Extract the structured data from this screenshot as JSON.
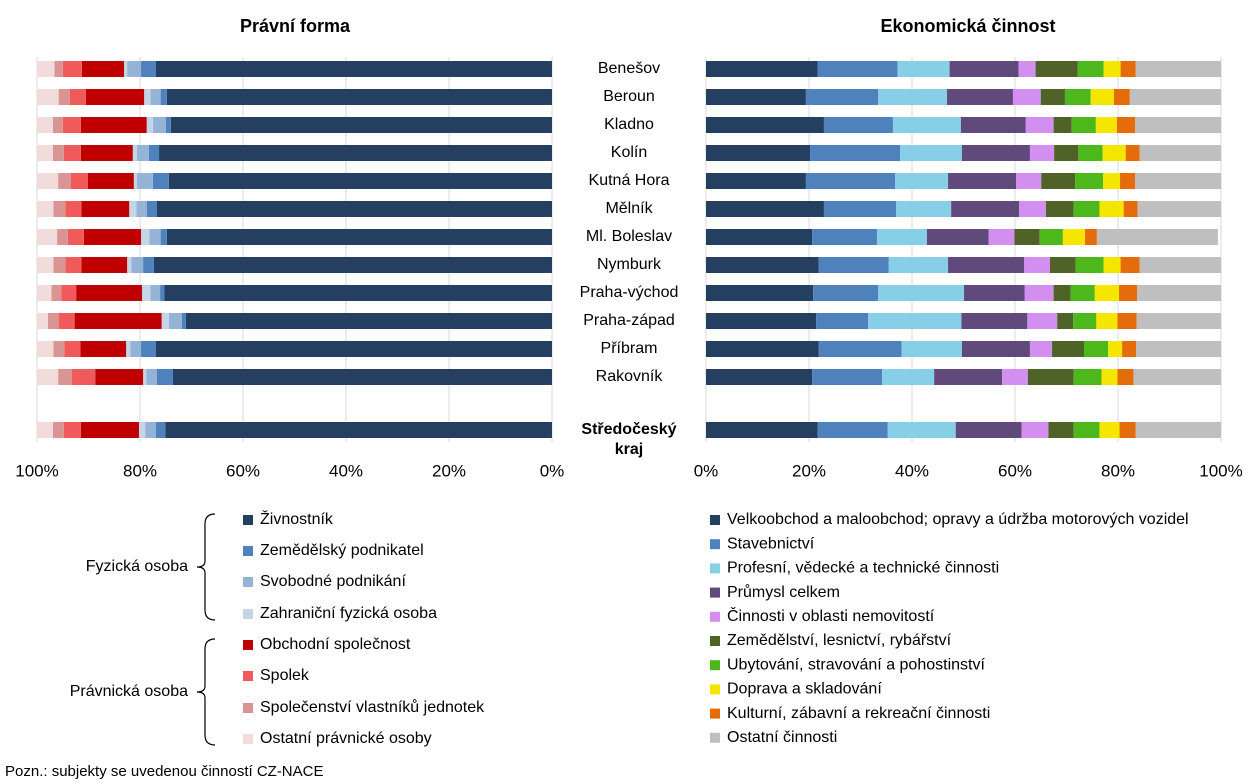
{
  "note": "Pozn.: subjekty se uvedenou činností CZ-NACE",
  "chart_data": [
    {
      "type": "stacked-bar-horizontal",
      "title": "Právní forma",
      "xlim": [
        100,
        0
      ],
      "xticks": [
        {
          "value": 100,
          "label": "100%"
        },
        {
          "value": 80,
          "label": "80%"
        },
        {
          "value": 60,
          "label": "60%"
        },
        {
          "value": 40,
          "label": "40%"
        },
        {
          "value": 20,
          "label": "20%"
        },
        {
          "value": 0,
          "label": "0%"
        }
      ],
      "grid": true,
      "legend_groups": [
        {
          "label": "Fyzická osoba",
          "series": [
            0,
            1,
            2,
            3
          ]
        },
        {
          "label": "Právnická osoba",
          "series": [
            4,
            5,
            6,
            7
          ]
        }
      ],
      "series": [
        {
          "name": "Živnostník",
          "color": "#243f60",
          "values": [
            76.9,
            74.8,
            74.0,
            76.3,
            74.4,
            76.7,
            74.8,
            77.3,
            75.3,
            71.1,
            76.9,
            73.6,
            null,
            75.1
          ]
        },
        {
          "name": "Zemědělský podnikatel",
          "color": "#4f81bd",
          "values": [
            2.9,
            1.2,
            1.0,
            2.0,
            3.1,
            2.0,
            1.2,
            2.1,
            0.8,
            0.8,
            2.9,
            3.1,
            null,
            1.8
          ]
        },
        {
          "name": "Svobodné podnikání",
          "color": "#95b3d7",
          "values": [
            2.7,
            2.0,
            2.5,
            2.3,
            3.1,
            2.0,
            2.2,
            2.3,
            1.9,
            2.5,
            2.1,
            2.1,
            null,
            2.1
          ]
        },
        {
          "name": "Zahraniční fyzická osoba",
          "color": "#c5d5e8",
          "values": [
            0.6,
            1.2,
            1.2,
            0.8,
            0.6,
            1.4,
            1.6,
            0.8,
            1.6,
            1.4,
            0.8,
            0.6,
            null,
            1.2
          ]
        },
        {
          "name": "Obchodní společnost",
          "color": "#c00000",
          "values": [
            8.2,
            11.3,
            12.8,
            10.1,
            8.9,
            9.3,
            11.1,
            8.9,
            12.8,
            16.9,
            8.9,
            9.3,
            null,
            11.3
          ]
        },
        {
          "name": "Spolek",
          "color": "#f05a5a",
          "values": [
            3.7,
            3.1,
            3.5,
            3.3,
            3.3,
            3.1,
            3.1,
            3.1,
            2.9,
            3.1,
            3.1,
            4.5,
            null,
            3.3
          ]
        },
        {
          "name": "Společenství vlastníků jednotek",
          "color": "#d99594",
          "values": [
            1.6,
            2.2,
            1.9,
            2.1,
            2.5,
            2.3,
            2.1,
            2.3,
            1.9,
            2.1,
            2.1,
            2.7,
            null,
            2.1
          ]
        },
        {
          "name": "Ostatní právnické osoby",
          "color": "#f2dcdb",
          "values": [
            3.5,
            4.2,
            3.1,
            3.1,
            4.1,
            3.2,
            3.9,
            3.2,
            2.8,
            2.1,
            3.2,
            4.1,
            null,
            3.1
          ]
        }
      ]
    },
    {
      "type": "stacked-bar-horizontal",
      "title": "Ekonomická činnost",
      "categories": [
        "Benešov",
        "Beroun",
        "Kladno",
        "Kolín",
        "Kutná Hora",
        "Mělník",
        "Ml. Boleslav",
        "Nymburk",
        "Praha-východ",
        "Praha-západ",
        "Příbram",
        "Rakovník",
        null,
        "Středočeský kraj"
      ],
      "xlim": [
        0,
        100
      ],
      "xticks": [
        {
          "value": 0,
          "label": "0%"
        },
        {
          "value": 20,
          "label": "20%"
        },
        {
          "value": 40,
          "label": "40%"
        },
        {
          "value": 60,
          "label": "60%"
        },
        {
          "value": 80,
          "label": "80%"
        },
        {
          "value": 100,
          "label": "100%"
        }
      ],
      "grid": true,
      "series": [
        {
          "name": "Velkoobchod a maloobchod; opravy a údržba motorových vozidel",
          "color": "#243f60",
          "values": [
            21.7,
            19.4,
            22.9,
            20.2,
            19.4,
            22.9,
            20.6,
            21.9,
            20.8,
            21.4,
            21.9,
            20.6,
            null,
            21.7
          ]
        },
        {
          "name": "Stavebnictví",
          "color": "#4f81bd",
          "values": [
            15.5,
            14.0,
            13.4,
            17.5,
            17.3,
            14.0,
            12.6,
            13.6,
            12.6,
            10.1,
            16.1,
            13.6,
            null,
            13.6
          ]
        },
        {
          "name": "Profesní, vědecké a technické činnosti",
          "color": "#86cfe6",
          "values": [
            10.1,
            13.4,
            13.2,
            12.0,
            10.3,
            10.7,
            9.7,
            11.5,
            16.7,
            18.1,
            11.7,
            10.1,
            null,
            13.2
          ]
        },
        {
          "name": "Průmysl celkem",
          "color": "#604a7b",
          "values": [
            13.4,
            12.8,
            12.6,
            13.2,
            13.2,
            13.2,
            12.0,
            14.8,
            11.8,
            12.8,
            13.2,
            13.2,
            null,
            12.8
          ]
        },
        {
          "name": "Činnosti v oblasti nemovitostí",
          "color": "#d38ff0",
          "values": [
            3.3,
            5.4,
            5.4,
            4.7,
            4.9,
            5.2,
            5.0,
            5.0,
            5.6,
            5.8,
            4.3,
            5.0,
            null,
            5.2
          ]
        },
        {
          "name": "Zemědělství, lesnictví, rybářství",
          "color": "#4f6228",
          "values": [
            8.2,
            4.7,
            3.5,
            4.7,
            6.6,
            5.4,
            4.9,
            5.0,
            3.3,
            3.1,
            6.2,
            8.9,
            null,
            4.9
          ]
        },
        {
          "name": "Ubytování, stravování a pohostinství",
          "color": "#4db81b",
          "values": [
            5.0,
            5.0,
            4.7,
            4.7,
            5.4,
            5.0,
            4.5,
            5.4,
            4.7,
            4.5,
            4.7,
            5.4,
            null,
            5.0
          ]
        },
        {
          "name": "Doprava a skladování",
          "color": "#f5e600",
          "values": [
            3.3,
            4.5,
            4.1,
            4.5,
            3.3,
            4.7,
            4.3,
            3.3,
            4.7,
            4.1,
            2.7,
            3.1,
            null,
            3.9
          ]
        },
        {
          "name": "Kulturní, zábavní a rekreační činnosti",
          "color": "#e46c0a",
          "values": [
            2.9,
            3.1,
            3.5,
            2.7,
            2.9,
            2.7,
            2.3,
            3.7,
            3.5,
            3.7,
            2.7,
            3.1,
            null,
            3.1
          ]
        },
        {
          "name": "Ostatní činnosti",
          "color": "#bfbfbf",
          "values": [
            16.6,
            17.7,
            16.7,
            15.8,
            16.7,
            16.2,
            23.5,
            15.8,
            16.3,
            16.4,
            16.5,
            17.0,
            null,
            16.6
          ]
        }
      ]
    }
  ]
}
